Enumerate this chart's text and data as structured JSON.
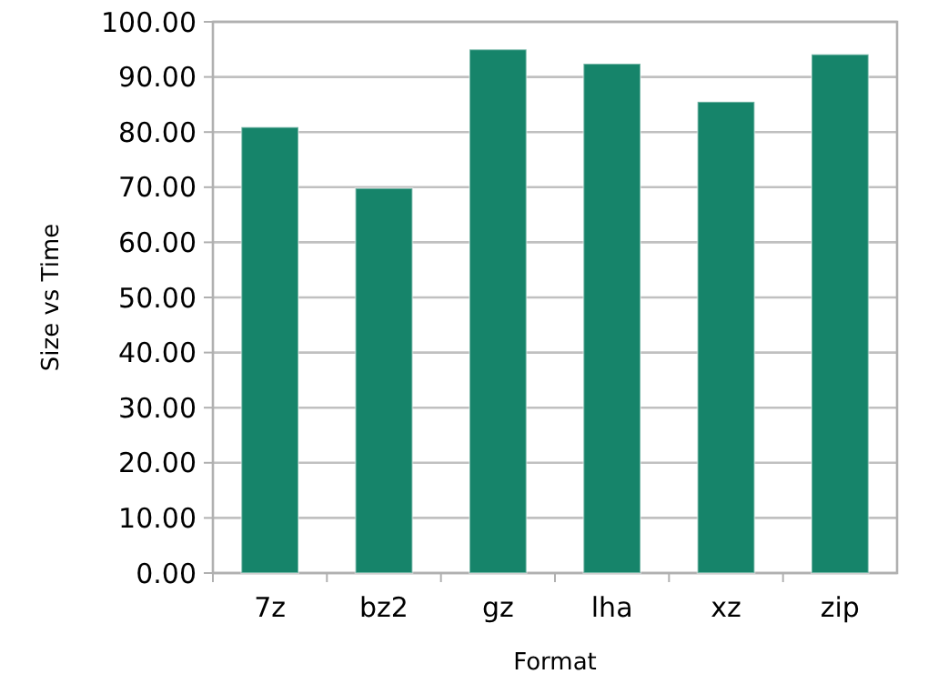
{
  "chart_data": {
    "type": "bar",
    "xlabel": "Format",
    "ylabel": "Size vs Time",
    "categories": [
      "7z",
      "bz2",
      "gz",
      "lha",
      "xz",
      "zip"
    ],
    "values": [
      80.9,
      69.8,
      95.0,
      92.4,
      85.5,
      94.1
    ],
    "color": "#16846a",
    "ylim": [
      0,
      100
    ],
    "yticks": [
      {
        "value": 0,
        "label": "0.00"
      },
      {
        "value": 10,
        "label": "10.00"
      },
      {
        "value": 20,
        "label": "20.00"
      },
      {
        "value": 30,
        "label": "30.00"
      },
      {
        "value": 40,
        "label": "40.00"
      },
      {
        "value": 50,
        "label": "50.00"
      },
      {
        "value": 60,
        "label": "60.00"
      },
      {
        "value": 70,
        "label": "70.00"
      },
      {
        "value": 80,
        "label": "80.00"
      },
      {
        "value": 90,
        "label": "90.00"
      },
      {
        "value": 100,
        "label": "100.00"
      }
    ],
    "grid": "y"
  }
}
